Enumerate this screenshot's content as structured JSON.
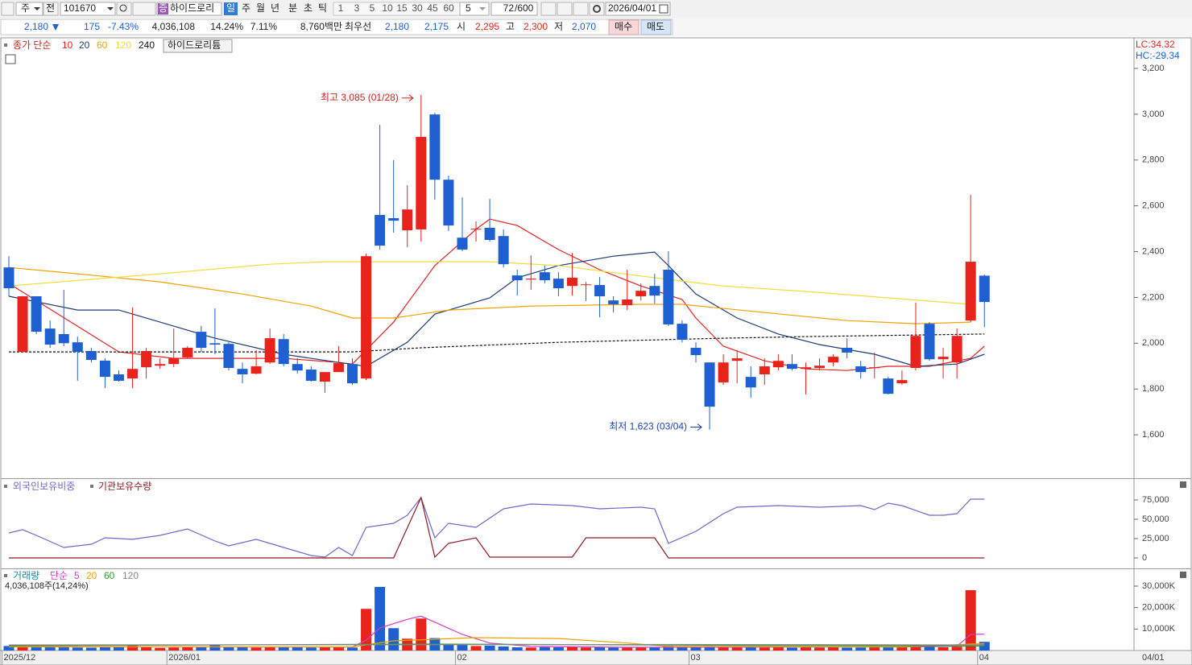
{
  "toolbar": {
    "market": "주",
    "mode": "전",
    "code": "101670",
    "badge": "증",
    "name": "하이드로리",
    "periods": [
      "일",
      "주",
      "월",
      "년",
      "분",
      "초",
      "틱"
    ],
    "intervals": [
      "1",
      "3",
      "5",
      "10",
      "15",
      "30",
      "45",
      "60"
    ],
    "interval_select": "5",
    "count": "72",
    "count_max": "/600",
    "date": "2026/04/01"
  },
  "info_bar": {
    "price": "2,180",
    "change": "175",
    "change_rate": "-7.43%",
    "volume": "4,036,108",
    "turnover": "14.24%",
    "ratio": "7.11%",
    "amount": "8,760백만",
    "best_quote": "최우선",
    "ask": "2,180",
    "bid": "2,175",
    "open_label": "시",
    "open": "2,295",
    "high_label": "고",
    "high": "2,300",
    "low_label": "저",
    "low": "2,070",
    "buy": "매수",
    "sell": "매도"
  },
  "chart_data": [
    {
      "type": "candlestick",
      "legend_title": "종가 단순",
      "stock_label": "하이드로리튬",
      "lc_label": "LC:34.32",
      "hc_label": "HC:-29.34",
      "annotations": [
        "최고 3,085 (01/28)",
        "최저 1,623 (03/04)"
      ],
      "up_color": "#e8231b",
      "down_color": "#1e5fd2",
      "open": [
        2331,
        1962,
        2205,
        2064,
        2040,
        2004,
        1966,
        1924,
        1864,
        1846,
        1895,
        1902,
        1909,
        1938,
        2050,
        2000,
        1997,
        1888,
        1867,
        1916,
        2018,
        1909,
        1885,
        1832,
        1874,
        1909,
        1846,
        2560,
        2546,
        2493,
        2497,
        2999,
        2714,
        2461,
        2497,
        2504,
        2468,
        2296,
        2278,
        2310,
        2282,
        2250,
        2254,
        2254,
        2187,
        2166,
        2205,
        2250,
        2321,
        2085,
        1980,
        1916,
        1829,
        1923,
        1853,
        1864,
        1895,
        1909,
        1888,
        1892,
        1916,
        1980,
        1899,
        1892,
        1846,
        1825,
        1892,
        2085,
        1930,
        1916,
        2099,
        2295
      ],
      "high": [
        2380,
        2205,
        2205,
        2099,
        2233,
        2029,
        1980,
        1934,
        1881,
        2156,
        1980,
        1934,
        2064,
        1987,
        2075,
        2152,
        2004,
        1916,
        1969,
        2064,
        2040,
        1934,
        1899,
        1867,
        1987,
        1934,
        2391,
        2954,
        2800,
        2690,
        3085,
        3006,
        2732,
        2637,
        2532,
        2630,
        2497,
        2321,
        2384,
        2339,
        2310,
        2394,
        2268,
        2289,
        2205,
        2321,
        2261,
        2303,
        2402,
        2099,
        2004,
        1916,
        1952,
        1969,
        1899,
        1934,
        1952,
        1952,
        1916,
        1934,
        1952,
        2022,
        1923,
        1959,
        1853,
        1881,
        2177,
        2092,
        1980,
        2064,
        2648,
        2300
      ],
      "low": [
        2205,
        1962,
        2040,
        1980,
        1987,
        1836,
        1916,
        1804,
        1832,
        1804,
        1846,
        1888,
        1895,
        1934,
        1962,
        1952,
        1881,
        1825,
        1864,
        1909,
        1899,
        1867,
        1832,
        1783,
        1874,
        1818,
        1839,
        2409,
        2483,
        2419,
        2444,
        2627,
        2490,
        2402,
        2444,
        2444,
        2331,
        2208,
        2233,
        2261,
        2205,
        2208,
        2184,
        2113,
        2134,
        2145,
        2187,
        2173,
        2075,
        2004,
        1916,
        1623,
        1818,
        1825,
        1762,
        1818,
        1881,
        1881,
        1776,
        1881,
        1899,
        1934,
        1846,
        1846,
        1776,
        1818,
        1881,
        1923,
        1846,
        1846,
        2092,
        2070
      ],
      "close": [
        2240,
        2205,
        2050,
        1994,
        2000,
        1962,
        1927,
        1853,
        1836,
        1888,
        1966,
        1909,
        1934,
        1980,
        1980,
        1994,
        1892,
        1864,
        1899,
        2022,
        1909,
        1881,
        1836,
        1874,
        1913,
        1825,
        2380,
        2426,
        2535,
        2584,
        2901,
        2714,
        2514,
        2409,
        2500,
        2451,
        2345,
        2275,
        2282,
        2275,
        2240,
        2286,
        2257,
        2205,
        2170,
        2191,
        2229,
        2208,
        2082,
        2015,
        1948,
        1723,
        1916,
        1934,
        1807,
        1899,
        1923,
        1888,
        1895,
        1902,
        1941,
        1959,
        1874,
        1895,
        1779,
        1839,
        2032,
        1930,
        1941,
        2032,
        2356,
        2180
      ],
      "series": [
        {
          "name": "10",
          "color": "#e32222",
          "x": [
            0,
            8,
            12,
            20,
            24,
            25,
            28,
            31,
            34,
            35,
            37,
            40,
            43,
            46,
            49,
            50,
            52,
            55,
            58,
            61,
            64,
            67,
            70,
            71
          ],
          "values": [
            2261,
            1962,
            1934,
            1934,
            1916,
            1909,
            2092,
            2339,
            2497,
            2542,
            2514,
            2409,
            2321,
            2250,
            2191,
            2110,
            1987,
            1923,
            1888,
            1881,
            1899,
            1899,
            1934,
            1987
          ]
        },
        {
          "name": "20",
          "color": "#1d3b78",
          "x": [
            0,
            5,
            8,
            11,
            15,
            20,
            24,
            26,
            29,
            31,
            35,
            37,
            40,
            44,
            47,
            48,
            50,
            53,
            56,
            59,
            63,
            66,
            69,
            71
          ],
          "values": [
            2205,
            2145,
            2145,
            2092,
            2022,
            1952,
            1916,
            1899,
            2004,
            2127,
            2198,
            2286,
            2339,
            2380,
            2398,
            2339,
            2215,
            2110,
            2040,
            1994,
            1952,
            1899,
            1909,
            1952
          ]
        },
        {
          "name": "60",
          "color": "#f0a000",
          "x": [
            0,
            5,
            11,
            17,
            22,
            25,
            28,
            32,
            38,
            46,
            49,
            55,
            61,
            66,
            70
          ],
          "values": [
            2331,
            2303,
            2268,
            2215,
            2162,
            2110,
            2110,
            2145,
            2162,
            2170,
            2170,
            2134,
            2099,
            2085,
            2092
          ]
        },
        {
          "name": "120",
          "color": "#f2dc3c",
          "x": [
            0,
            11,
            19,
            23,
            35,
            40,
            47,
            52,
            58,
            64,
            70
          ],
          "values": [
            2250,
            2303,
            2345,
            2356,
            2356,
            2339,
            2286,
            2250,
            2226,
            2198,
            2170
          ]
        },
        {
          "name": "240",
          "color": "#111111",
          "dash": true,
          "x": [
            0,
            25,
            30,
            40,
            52,
            58,
            71
          ],
          "values": [
            1962,
            1962,
            1980,
            2004,
            2022,
            2029,
            2040
          ]
        }
      ],
      "ylim": [
        1414,
        3330
      ],
      "yticks": [
        {
          "value": 1600,
          "label": "1,600"
        },
        {
          "value": 1800,
          "label": "1,800"
        },
        {
          "value": 2000,
          "label": "2,000"
        },
        {
          "value": 2200,
          "label": "2,200"
        },
        {
          "value": 2400,
          "label": "2,400"
        },
        {
          "value": 2600,
          "label": "2,600"
        },
        {
          "value": 2800,
          "label": "2,800"
        },
        {
          "value": 3000,
          "label": "3,000"
        },
        {
          "value": 3200,
          "label": "3,200"
        }
      ]
    },
    {
      "type": "line",
      "series": [
        {
          "name": "외국인보유비중",
          "color": "#6f67c9",
          "x": [
            0,
            1,
            2,
            4,
            6,
            7,
            9,
            11,
            13,
            15,
            16,
            18,
            20,
            22,
            23,
            24,
            25,
            26,
            28,
            29,
            30,
            31,
            32,
            34,
            36,
            38,
            41,
            43,
            46,
            47,
            48,
            50,
            52,
            53,
            56,
            59,
            62,
            63,
            64,
            65,
            67,
            68,
            69,
            70,
            71
          ],
          "values": [
            32300,
            36500,
            29200,
            13500,
            17700,
            26000,
            24000,
            29200,
            37500,
            21900,
            15600,
            24000,
            13500,
            3100,
            1000,
            13500,
            3100,
            39600,
            44800,
            55200,
            78100,
            26000,
            44800,
            39600,
            63500,
            69800,
            67700,
            63500,
            65600,
            63500,
            18800,
            34400,
            57300,
            65600,
            67700,
            65600,
            67700,
            62500,
            70800,
            67700,
            55200,
            55200,
            57300,
            76000,
            76000
          ]
        },
        {
          "name": "기관보유수량",
          "color": "#8b1c24",
          "x": [
            0,
            28,
            30,
            31,
            32,
            34,
            35,
            41,
            42,
            47,
            48,
            71
          ],
          "values": [
            0,
            0,
            78100,
            1000,
            18800,
            26000,
            1000,
            1000,
            26000,
            26000,
            0,
            0
          ]
        }
      ],
      "ylim": [
        -12500,
        101000
      ],
      "yticks": [
        0,
        {
          "value": 25000,
          "label": "25,000"
        },
        {
          "value": 50000,
          "label": "50,000"
        },
        {
          "value": 75000,
          "label": "75,000"
        }
      ]
    },
    {
      "type": "bar",
      "legend_title": "거래량",
      "legend_method": "단순",
      "volume_label": "4,036,108주(14,24%)",
      "values": [
        2100,
        1800,
        1600,
        1500,
        1900,
        1400,
        1300,
        1700,
        1500,
        2800,
        1600,
        1200,
        1400,
        1500,
        1700,
        2500,
        1600,
        1500,
        1400,
        1600,
        1700,
        1500,
        1400,
        1600,
        1500,
        1400,
        19400,
        29600,
        10400,
        5500,
        14900,
        5800,
        2800,
        2600,
        2100,
        2300,
        1900,
        1500,
        1400,
        1600,
        1500,
        1700,
        1400,
        1600,
        1300,
        1500,
        1400,
        1600,
        2200,
        1900,
        1700,
        2100,
        1800,
        1600,
        1500,
        1400,
        1500,
        1300,
        1600,
        1400,
        1500,
        1300,
        1400,
        1500,
        1700,
        1500,
        2800,
        1900,
        1500,
        1800,
        28100,
        4036
      ],
      "series": [
        {
          "name": "5",
          "color": "#d63bc4",
          "x": [
            0,
            25,
            26,
            27,
            29,
            30,
            31,
            33,
            35,
            38,
            45,
            65,
            68,
            69,
            70,
            71
          ],
          "values": [
            1800,
            1600,
            4800,
            10500,
            14500,
            16000,
            13200,
            7500,
            3500,
            1900,
            1500,
            1700,
            1900,
            2000,
            7500,
            7600
          ]
        },
        {
          "name": "20",
          "color": "#f0a000",
          "x": [
            0,
            25,
            28,
            34,
            40,
            45,
            48,
            65,
            70,
            71
          ],
          "values": [
            1700,
            1700,
            4500,
            6000,
            5600,
            3500,
            1900,
            1600,
            3000,
            3200
          ]
        },
        {
          "name": "60",
          "color": "#2e9a3a",
          "x": [
            0,
            30,
            48,
            55,
            71
          ],
          "values": [
            2200,
            3000,
            2600,
            2300,
            2100
          ]
        },
        {
          "name": "120",
          "color": "#888888",
          "x": [
            0,
            30,
            48,
            71
          ],
          "values": [
            2600,
            2700,
            2800,
            2600
          ]
        }
      ],
      "ylim": [
        0,
        37500
      ],
      "yticks": [
        {
          "value": 10000,
          "label": "10,000K"
        },
        {
          "value": 20000,
          "label": "20,000K"
        },
        {
          "value": 30000,
          "label": "30,000K"
        }
      ],
      "xticks": [
        {
          "value": 0,
          "label": "2025/12"
        },
        {
          "value": 12,
          "label": "2026/01"
        },
        {
          "value": 33,
          "label": "02"
        },
        {
          "value": 50,
          "label": "03"
        },
        {
          "value": 71,
          "label": "04"
        }
      ],
      "x_end_label": "04/01"
    }
  ]
}
